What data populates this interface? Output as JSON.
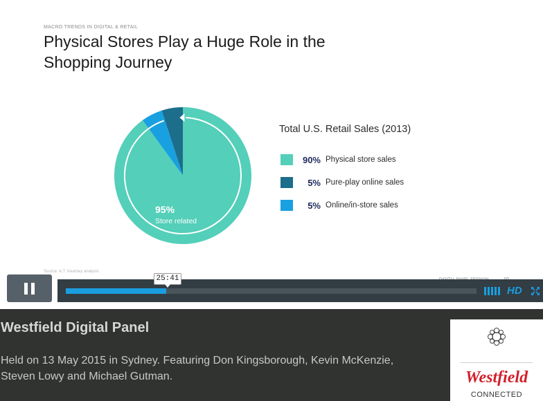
{
  "slide": {
    "eyebrow": "MACRO TRENDS IN DIGITAL & RETAIL",
    "title": "Physical Stores Play a Huge Role in the Shopping Journey",
    "source": "Source: A.T. Kearney analysis",
    "footer_label": "DIGITAL PANEL SESSION",
    "footer_page": "10"
  },
  "chart_data": {
    "type": "pie",
    "title": "Total U.S. Retail Sales (2013)",
    "slices": [
      {
        "label": "Physical store sales",
        "value": 90,
        "display": "90%",
        "color": "#54cfb9"
      },
      {
        "label": "Pure-play online sales",
        "value": 5,
        "display": "5%",
        "color": "#1c6e8b"
      },
      {
        "label": "Online/in-store sales",
        "value": 5,
        "display": "5%",
        "color": "#18a0e0"
      }
    ],
    "annotation_value": "95%",
    "annotation_label": "Store related"
  },
  "player": {
    "time_tooltip": "25:41",
    "progress_fraction": 0.245,
    "hd_label": "HD",
    "accent_color": "#1a9ee0",
    "icons": {
      "pause": "pause-icon",
      "volume": "volume-icon",
      "fullscreen": "fullscreen-icon"
    }
  },
  "info": {
    "title": "Westfield Digital Panel",
    "description": "Held on 13 May 2015 in Sydney. Featuring Don Kingsborough, Kevin McKenzie, Steven Lowy and Michael Gutman.",
    "logo_word": "Westfield",
    "logo_sub": "CONNECTED",
    "brand_color": "#d21f2a"
  }
}
